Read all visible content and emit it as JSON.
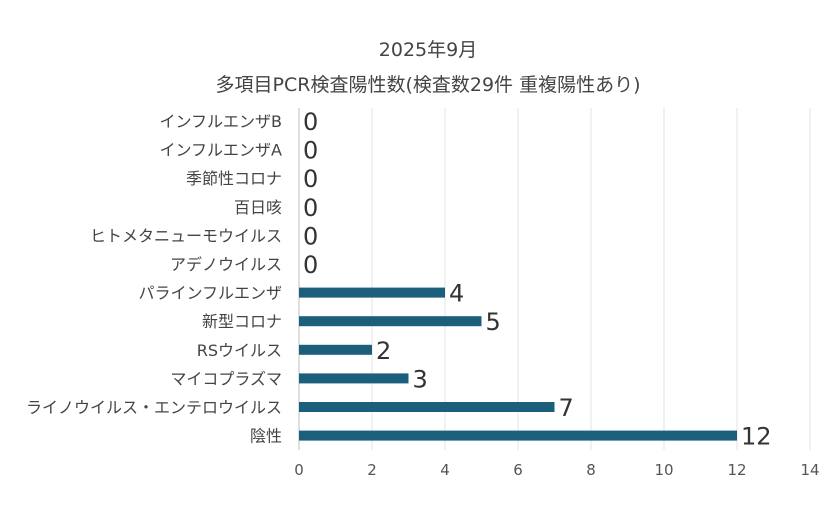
{
  "chart_data": {
    "type": "bar",
    "orientation": "horizontal",
    "title": "2025年9月",
    "subtitle": "多項目PCR検査陽性数(検査数29件 重複陽性あり)",
    "categories": [
      "インフルエンザB",
      "インフルエンザA",
      "季節性コロナ",
      "百日咳",
      "ヒトメタニューモウイルス",
      "アデノウイルス",
      "パラインフルエンザ",
      "新型コロナ",
      "RSウイルス",
      "マイコプラズマ",
      "ライノウイルス・エンテロウイルス",
      "陰性"
    ],
    "values": [
      0,
      0,
      0,
      0,
      0,
      0,
      4,
      5,
      2,
      3,
      7,
      12
    ],
    "xlim": [
      0,
      14
    ],
    "xticks": [
      0,
      2,
      4,
      6,
      8,
      10,
      12,
      14
    ],
    "grid": true,
    "legend": "none",
    "bar_color": "#1b5f7b",
    "show_data_labels": true
  }
}
